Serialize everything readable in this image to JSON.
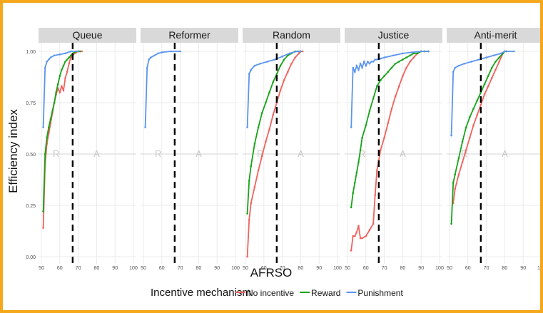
{
  "chart_data": {
    "type": "line",
    "ylabel": "Efficiency index",
    "xlabel": "AFRSO",
    "legend": {
      "title": "Incentive mechanism",
      "placement": "bottom",
      "entries": [
        "No incentive",
        "Reward",
        "Punishment"
      ]
    },
    "colors": {
      "No incentive": "#f0625d",
      "Reward": "#19a319",
      "Punishment": "#5b95ed"
    },
    "x_range": [
      50,
      100
    ],
    "y_range": [
      0,
      1
    ],
    "x_ticks": [
      "50",
      "60",
      "70",
      "80",
      "90",
      "100"
    ],
    "y_ticks": [
      "0.00",
      "0.25",
      "0.50",
      "0.75",
      "1.00"
    ],
    "grid": true,
    "reference_line_x": 67,
    "facets": [
      {
        "title": "Queue",
        "region_labels": [
          "R",
          "A"
        ],
        "series": [
          {
            "name": "No incentive",
            "x": [
              51,
              52,
              53,
              54,
              55,
              56,
              57,
              58,
              59,
              60,
              61,
              62,
              63,
              64,
              65,
              66,
              67,
              68,
              69,
              70,
              71,
              72
            ],
            "y": [
              0.14,
              0.45,
              0.55,
              0.6,
              0.65,
              0.7,
              0.75,
              0.79,
              0.82,
              0.8,
              0.83,
              0.81,
              0.87,
              0.9,
              0.94,
              0.97,
              0.98,
              0.99,
              0.995,
              1.0,
              1.0,
              1.0
            ]
          },
          {
            "name": "Reward",
            "x": [
              51,
              52,
              53,
              54,
              55,
              56,
              57,
              58,
              59,
              60,
              61,
              62,
              63,
              64,
              65,
              66,
              67,
              68,
              69,
              70,
              71
            ],
            "y": [
              0.22,
              0.5,
              0.58,
              0.63,
              0.67,
              0.71,
              0.75,
              0.8,
              0.84,
              0.88,
              0.91,
              0.93,
              0.95,
              0.96,
              0.97,
              0.98,
              0.99,
              0.995,
              1.0,
              1.0,
              1.0
            ]
          },
          {
            "name": "Punishment",
            "x": [
              51,
              52,
              53,
              54,
              55,
              57,
              60,
              63,
              66,
              70
            ],
            "y": [
              0.63,
              0.92,
              0.95,
              0.96,
              0.97,
              0.98,
              0.985,
              0.99,
              1.0,
              1.0
            ]
          }
        ]
      },
      {
        "title": "Reformer",
        "region_labels": [
          "R",
          "A"
        ],
        "series": [
          {
            "name": "Punishment",
            "x": [
              51,
              52,
              53,
              54,
              56,
              58,
              60,
              65,
              70
            ],
            "y": [
              0.63,
              0.92,
              0.96,
              0.97,
              0.98,
              0.99,
              0.995,
              1.0,
              1.0
            ]
          }
        ]
      },
      {
        "title": "Random",
        "region_labels": [
          "R",
          "A"
        ],
        "series": [
          {
            "name": "No incentive",
            "x": [
              51,
              52,
              53,
              55,
              57,
              59,
              61,
              63,
              65,
              67,
              69,
              71,
              73,
              75,
              77,
              79,
              80,
              81
            ],
            "y": [
              0.0,
              0.18,
              0.26,
              0.34,
              0.42,
              0.49,
              0.56,
              0.62,
              0.69,
              0.75,
              0.81,
              0.86,
              0.9,
              0.94,
              0.97,
              0.99,
              1.0,
              1.0
            ]
          },
          {
            "name": "Reward",
            "x": [
              51,
              52,
              53,
              55,
              57,
              59,
              61,
              63,
              65,
              67,
              69,
              71,
              73,
              75,
              77,
              79,
              80
            ],
            "y": [
              0.21,
              0.37,
              0.44,
              0.55,
              0.63,
              0.7,
              0.75,
              0.8,
              0.85,
              0.89,
              0.93,
              0.96,
              0.98,
              0.99,
              1.0,
              1.0,
              1.0
            ]
          },
          {
            "name": "Punishment",
            "x": [
              51,
              52,
              53,
              55,
              58,
              62,
              66,
              70,
              74,
              78,
              80
            ],
            "y": [
              0.63,
              0.89,
              0.91,
              0.93,
              0.94,
              0.95,
              0.96,
              0.975,
              0.99,
              1.0,
              1.0
            ]
          }
        ]
      },
      {
        "title": "Justice",
        "region_labels": [
          "R",
          "A"
        ],
        "series": [
          {
            "name": "No incentive",
            "x": [
              52,
              53,
              54,
              55,
              56,
              57,
              58,
              60,
              62,
              64,
              65,
              66,
              67,
              68,
              70,
              72,
              74,
              76,
              78,
              80,
              82,
              84,
              86,
              88,
              90,
              92,
              94
            ],
            "y": [
              0.03,
              0.1,
              0.1,
              0.12,
              0.15,
              0.09,
              0.09,
              0.1,
              0.13,
              0.16,
              0.3,
              0.42,
              0.47,
              0.52,
              0.58,
              0.65,
              0.72,
              0.78,
              0.83,
              0.88,
              0.92,
              0.95,
              0.97,
              0.99,
              1.0,
              1.0,
              1.0
            ]
          },
          {
            "name": "Reward",
            "x": [
              52,
              53,
              54,
              55,
              56,
              57,
              58,
              60,
              62,
              64,
              66,
              68,
              70,
              72,
              74,
              76,
              78,
              80,
              82,
              84,
              86,
              88,
              90,
              92,
              94
            ],
            "y": [
              0.24,
              0.31,
              0.36,
              0.41,
              0.46,
              0.52,
              0.58,
              0.64,
              0.71,
              0.77,
              0.83,
              0.86,
              0.88,
              0.9,
              0.92,
              0.94,
              0.95,
              0.96,
              0.97,
              0.98,
              0.99,
              0.99,
              1.0,
              1.0,
              1.0
            ]
          },
          {
            "name": "Punishment",
            "x": [
              52,
              53,
              54,
              55,
              56,
              57,
              58,
              59,
              60,
              61,
              62,
              63,
              64,
              65,
              66,
              68,
              70,
              75,
              80,
              85,
              90,
              94
            ],
            "y": [
              0.63,
              0.92,
              0.9,
              0.93,
              0.91,
              0.94,
              0.92,
              0.95,
              0.93,
              0.95,
              0.94,
              0.95,
              0.95,
              0.96,
              0.96,
              0.965,
              0.97,
              0.98,
              0.99,
              0.995,
              1.0,
              1.0
            ]
          }
        ]
      },
      {
        "title": "Anti-merit",
        "region_labels": [
          "R",
          "A"
        ],
        "series": [
          {
            "name": "No incentive",
            "x": [
              52,
              53,
              55,
              57,
              59,
              61,
              63,
              65,
              67,
              69,
              71,
              73,
              75,
              77,
              79,
              80,
              81
            ],
            "y": [
              0.26,
              0.33,
              0.4,
              0.46,
              0.52,
              0.58,
              0.64,
              0.69,
              0.74,
              0.79,
              0.83,
              0.87,
              0.91,
              0.95,
              0.99,
              1.0,
              1.0
            ]
          },
          {
            "name": "Reward",
            "x": [
              51,
              52,
              53,
              55,
              57,
              59,
              61,
              63,
              65,
              67,
              69,
              71,
              73,
              75,
              77,
              79,
              80,
              81
            ],
            "y": [
              0.16,
              0.36,
              0.4,
              0.48,
              0.56,
              0.63,
              0.68,
              0.72,
              0.76,
              0.8,
              0.84,
              0.88,
              0.92,
              0.95,
              0.97,
              0.99,
              1.0,
              1.0
            ]
          },
          {
            "name": "Punishment",
            "x": [
              51,
              52,
              53,
              55,
              58,
              62,
              66,
              70,
              74,
              78,
              80,
              85
            ],
            "y": [
              0.59,
              0.9,
              0.92,
              0.93,
              0.94,
              0.95,
              0.96,
              0.97,
              0.98,
              0.99,
              1.0,
              1.0
            ]
          }
        ]
      }
    ]
  }
}
